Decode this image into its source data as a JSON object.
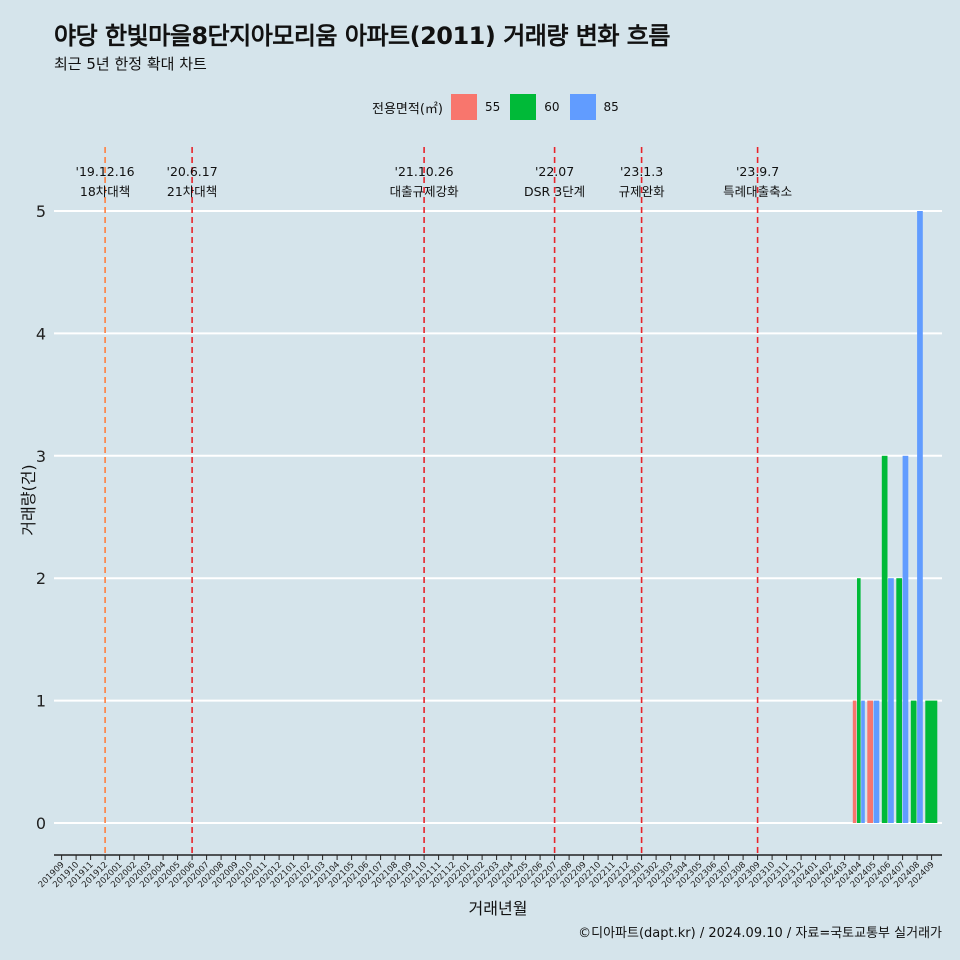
{
  "chart_data": {
    "type": "bar",
    "title": "야당 한빛마을8단지아모리움 아파트(2011) 거래량 변화 흐름",
    "subtitle": "최근 5년 한정 확대 차트",
    "xlabel": "거래년월",
    "ylabel": "거래량(건)",
    "ylim": [
      0,
      5
    ],
    "yticks": [
      0,
      1,
      2,
      3,
      4,
      5
    ],
    "grid": true,
    "legend_title": "전용면적(㎡)",
    "legend_position": "top",
    "categories": [
      "201909",
      "201910",
      "201911",
      "201912",
      "202001",
      "202002",
      "202003",
      "202004",
      "202005",
      "202006",
      "202007",
      "202008",
      "202009",
      "202010",
      "202011",
      "202012",
      "202101",
      "202102",
      "202103",
      "202104",
      "202105",
      "202106",
      "202107",
      "202108",
      "202109",
      "202110",
      "202111",
      "202112",
      "202201",
      "202202",
      "202203",
      "202204",
      "202205",
      "202206",
      "202207",
      "202208",
      "202209",
      "202210",
      "202211",
      "202212",
      "202301",
      "202302",
      "202303",
      "202304",
      "202305",
      "202306",
      "202307",
      "202308",
      "202309",
      "202310",
      "202311",
      "202312",
      "202401",
      "202402",
      "202403",
      "202404",
      "202405",
      "202406",
      "202407",
      "202408",
      "202409"
    ],
    "series": [
      {
        "name": "55",
        "color": "#f8766d",
        "values": [
          0,
          0,
          0,
          0,
          0,
          0,
          0,
          0,
          0,
          0,
          0,
          0,
          0,
          0,
          0,
          0,
          0,
          0,
          0,
          0,
          0,
          0,
          0,
          0,
          0,
          0,
          0,
          0,
          0,
          0,
          0,
          0,
          0,
          0,
          0,
          0,
          0,
          0,
          0,
          0,
          0,
          0,
          0,
          0,
          0,
          0,
          0,
          0,
          0,
          0,
          0,
          0,
          0,
          0,
          0,
          1,
          1,
          0,
          0,
          0,
          0
        ]
      },
      {
        "name": "60",
        "color": "#00ba38",
        "values": [
          0,
          0,
          0,
          0,
          0,
          0,
          0,
          0,
          0,
          0,
          0,
          0,
          0,
          0,
          0,
          0,
          0,
          0,
          0,
          0,
          0,
          0,
          0,
          0,
          0,
          0,
          0,
          0,
          0,
          0,
          0,
          0,
          0,
          0,
          0,
          0,
          0,
          0,
          0,
          0,
          0,
          0,
          0,
          0,
          0,
          0,
          0,
          0,
          0,
          0,
          0,
          0,
          0,
          0,
          0,
          2,
          0,
          3,
          2,
          1,
          1
        ]
      },
      {
        "name": "85",
        "color": "#619cff",
        "values": [
          0,
          0,
          0,
          0,
          0,
          0,
          0,
          0,
          0,
          0,
          0,
          0,
          0,
          0,
          0,
          0,
          0,
          0,
          0,
          0,
          0,
          0,
          0,
          0,
          0,
          0,
          0,
          0,
          0,
          0,
          0,
          0,
          0,
          0,
          0,
          0,
          0,
          0,
          0,
          0,
          0,
          0,
          0,
          0,
          0,
          0,
          0,
          0,
          0,
          0,
          0,
          0,
          0,
          0,
          0,
          1,
          1,
          2,
          3,
          5,
          0
        ]
      }
    ],
    "annotations": [
      {
        "x": "201912",
        "date": "'19.12.16",
        "label": "18차대책",
        "color": "#ff7f3f",
        "style": "dashed"
      },
      {
        "x": "202006",
        "date": "'20.6.17",
        "label": "21차대책",
        "color": "#e8232a",
        "style": "dashed"
      },
      {
        "x": "202110",
        "date": "'21.10.26",
        "label": "대출규제강화",
        "color": "#e8232a",
        "style": "dashed"
      },
      {
        "x": "202207",
        "date": "'22.07",
        "label": "DSR 3단계",
        "color": "#e8232a",
        "style": "dashed"
      },
      {
        "x": "202301",
        "date": "'23.1.3",
        "label": "규제완화",
        "color": "#e8232a",
        "style": "dashed"
      },
      {
        "x": "202309",
        "date": "'23.9.7",
        "label": "특례대출축소",
        "color": "#e8232a",
        "style": "dashed"
      }
    ],
    "caption": "©디아파트(dapt.kr) / 2024.09.10 / 자료=국토교통부 실거래가"
  }
}
